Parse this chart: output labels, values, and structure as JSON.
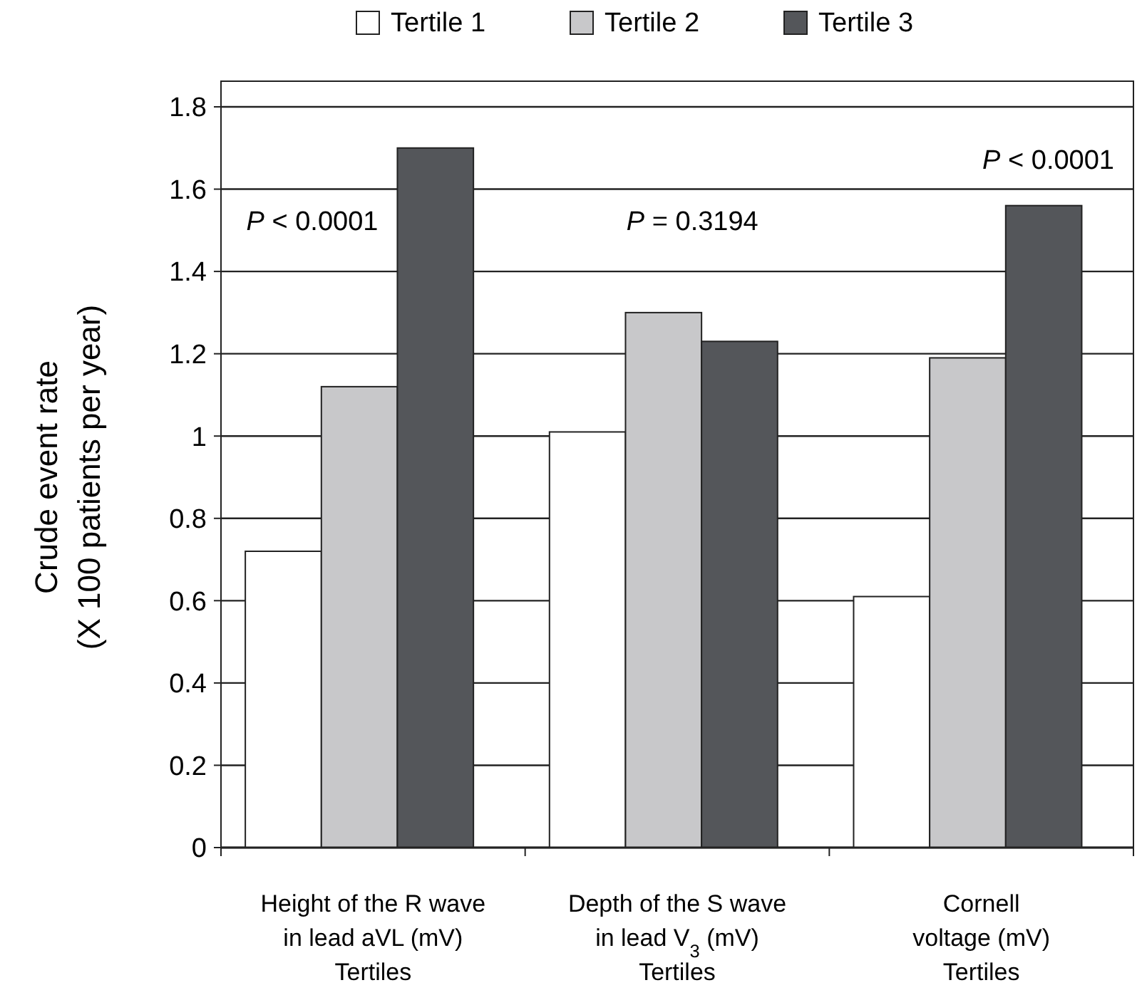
{
  "chart_data": {
    "type": "bar",
    "ylabel": "Crude event rate\n(X 100 patients per year)",
    "categories": [
      "Height of the R wave\nin lead aVL (mV)\nTertiles",
      "Depth of the S wave\nin lead V$_{3}$ (mV)\nTertiles",
      "Cornell\nvoltage (mV)\nTertiles"
    ],
    "series": [
      {
        "name": "Tertile 1",
        "color": "#ffffff",
        "values": [
          0.72,
          1.01,
          0.61
        ]
      },
      {
        "name": "Tertile 2",
        "color": "#c8c8ca",
        "values": [
          1.12,
          1.3,
          1.19
        ]
      },
      {
        "name": "Tertile 3",
        "color": "#54565a",
        "values": [
          1.7,
          1.23,
          1.56
        ]
      }
    ],
    "ylim": [
      0,
      1.8
    ],
    "yticks": [
      0,
      0.2,
      0.4,
      0.6,
      0.8,
      1,
      1.2,
      1.4,
      1.6,
      1.8
    ],
    "annotations": [
      "P < 0.0001",
      "P = 0.3194",
      "P < 0.0001"
    ],
    "grid": "y",
    "legend": "top"
  }
}
